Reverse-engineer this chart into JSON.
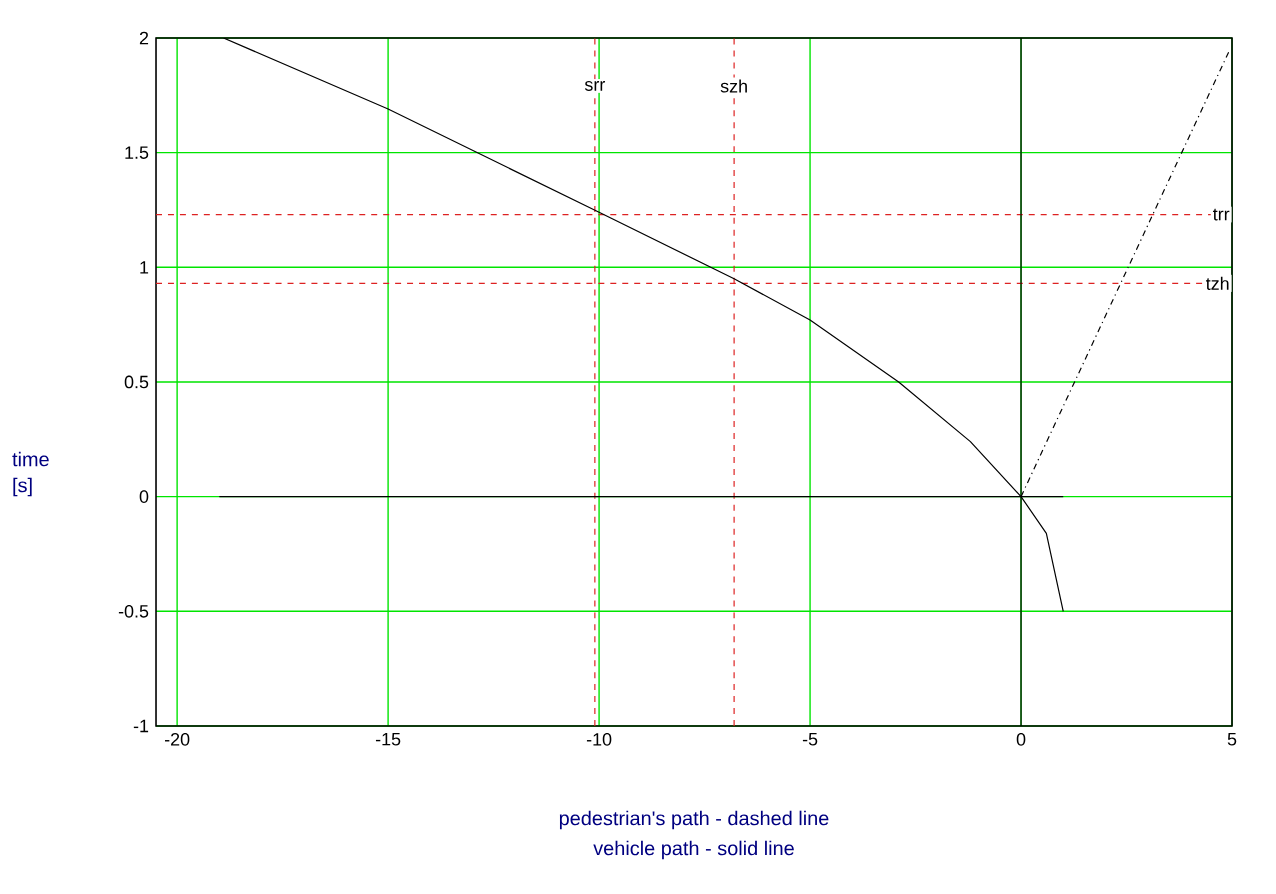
{
  "chart_data": {
    "type": "line",
    "xlabel": "pedestrian's path - dashed line",
    "ylabel": "time [s]",
    "annotations": [
      "vehicle path - solid line"
    ],
    "series": [
      {
        "color": "#000000",
        "line_style": "solid",
        "x": [
          -18.9,
          -15,
          -10,
          -6.8,
          -5,
          -2.9,
          -1.2,
          0,
          0.6,
          1.0
        ],
        "values": [
          2,
          1.69,
          1.24,
          0.95,
          0.77,
          0.5,
          0.24,
          0,
          -0.16,
          -0.5
        ]
      },
      {
        "color": "#000000",
        "line_style": "solid",
        "x": [
          -19,
          1
        ],
        "values": [
          0,
          0
        ]
      },
      {
        "color": "#000000",
        "line_style": "dashed",
        "x": [
          0,
          4.95
        ],
        "values": [
          0,
          1.95
        ]
      }
    ],
    "xlim": [
      -20.5,
      5
    ],
    "ylim": [
      -1,
      2
    ],
    "xticks": [
      -20,
      -15,
      -10,
      -5,
      0,
      5
    ],
    "yticks": [
      -1,
      -0.5,
      0,
      0.5,
      1,
      1.5,
      2
    ],
    "grid": true,
    "ref_lines": [
      {
        "axis": "x",
        "value": -10.1,
        "label": "srr",
        "color": "#dd2222",
        "line_style": "dashed"
      },
      {
        "axis": "x",
        "value": -6.8,
        "label": "szh",
        "color": "#dd2222",
        "line_style": "dashed"
      },
      {
        "axis": "y",
        "value": 1.23,
        "label": "trr",
        "color": "#dd2222",
        "line_style": "dashed"
      },
      {
        "axis": "y",
        "value": 0.93,
        "label": "tzh",
        "color": "#dd2222",
        "line_style": "dashed"
      },
      {
        "axis": "x",
        "value": 0,
        "color": "#000000",
        "line_style": "solid"
      }
    ]
  }
}
